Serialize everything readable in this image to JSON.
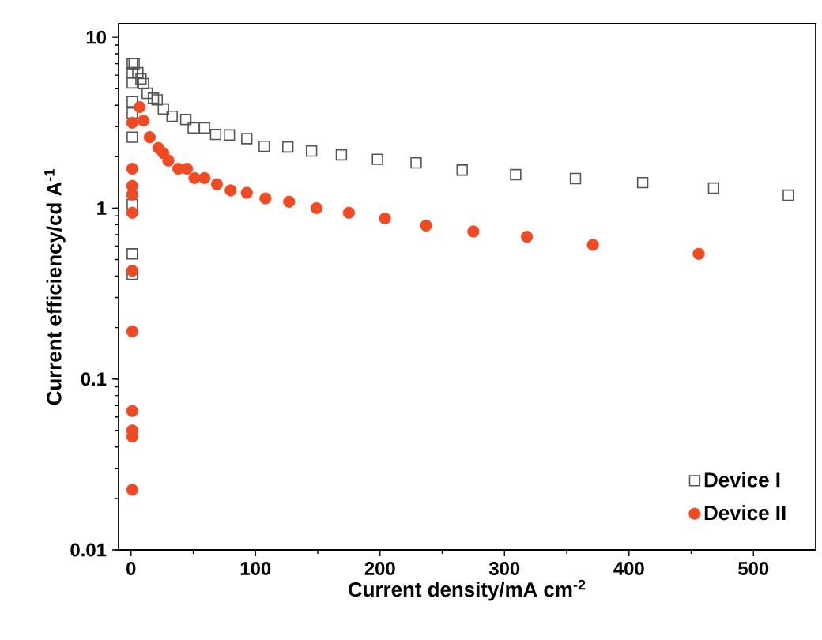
{
  "chart_data": {
    "type": "scatter",
    "xlabel": "Current density/mA cm$^{-2}$",
    "ylabel": "Current efficiency/cd A$^{-1}$",
    "log": "y",
    "xlim": [
      -10,
      550
    ],
    "ylim": [
      0.01,
      12
    ],
    "xticks": [
      0,
      100,
      200,
      300,
      400,
      500
    ],
    "yticks": [
      0.01,
      0.1,
      1,
      10
    ],
    "legend": "bottom right",
    "grid": false,
    "series": [
      {
        "name": "Device I",
        "color": "#555555",
        "marker": "square",
        "x": [
          1,
          1,
          1,
          1,
          1,
          1,
          1,
          1,
          1,
          2.5,
          5.5,
          8,
          10,
          13,
          18,
          21,
          26,
          33,
          44,
          50,
          59,
          68,
          79,
          93,
          107,
          126,
          145,
          169,
          198,
          229,
          266,
          309,
          357,
          411,
          468,
          528
        ],
        "values": [
          0.41,
          0.54,
          1.05,
          2.6,
          3.6,
          4.2,
          5.4,
          6.2,
          7.0,
          7.0,
          6.2,
          5.7,
          5.35,
          4.7,
          4.4,
          4.3,
          3.8,
          3.45,
          3.3,
          2.95,
          2.95,
          2.7,
          2.68,
          2.55,
          2.3,
          2.28,
          2.16,
          2.05,
          1.93,
          1.84,
          1.67,
          1.57,
          1.49,
          1.41,
          1.31,
          1.19
        ]
      },
      {
        "name": "Device II",
        "color": "#f04a23",
        "marker": "circle",
        "x": [
          1,
          1,
          1,
          1,
          1,
          1,
          1,
          1,
          1,
          1,
          1,
          7,
          10,
          15,
          22,
          26,
          30,
          38,
          45,
          51,
          59,
          69,
          80,
          93,
          108,
          127,
          149,
          175,
          204,
          237,
          275,
          318,
          371,
          456
        ],
        "values": [
          0.0225,
          0.046,
          0.05,
          0.065,
          0.19,
          0.43,
          0.94,
          1.2,
          1.35,
          1.7,
          3.16,
          3.9,
          3.25,
          2.6,
          2.25,
          2.1,
          1.9,
          1.7,
          1.7,
          1.5,
          1.5,
          1.38,
          1.27,
          1.23,
          1.14,
          1.09,
          1.0,
          0.94,
          0.87,
          0.79,
          0.73,
          0.68,
          0.61,
          0.54
        ]
      }
    ]
  }
}
